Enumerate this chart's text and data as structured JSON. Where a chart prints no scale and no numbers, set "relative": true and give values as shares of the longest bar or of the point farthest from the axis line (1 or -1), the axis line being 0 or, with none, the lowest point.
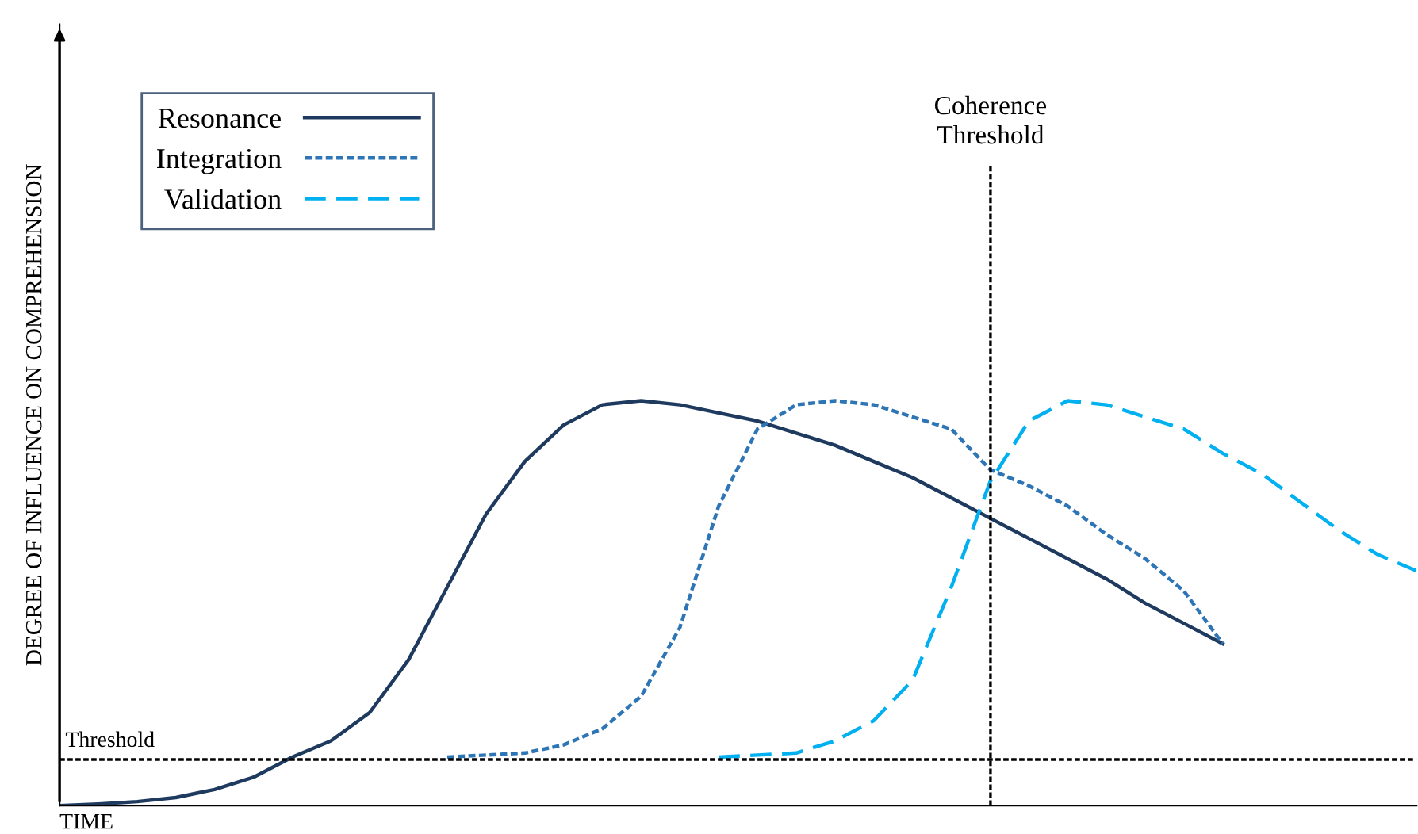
{
  "chart_data": {
    "type": "line",
    "relative": true,
    "xlabel": "TIME",
    "ylabel": "DEGREE OF INFLUENCE ON COMPREHENSION",
    "categories": [
      null,
      null,
      null,
      null,
      null,
      null,
      null,
      null,
      null,
      null,
      null,
      null,
      null,
      null,
      null,
      null,
      null,
      null,
      null,
      null,
      null,
      null,
      null,
      null,
      null,
      null,
      null,
      null,
      null,
      null,
      null,
      null,
      null,
      null,
      null,
      null
    ],
    "series": [
      {
        "name": "Resonance",
        "color": "#1f3a5f",
        "line_style": "solid",
        "values": [
          0,
          0.004,
          0.01,
          0.02,
          0.04,
          0.07,
          0.12,
          0.16,
          0.23,
          0.36,
          0.54,
          0.72,
          0.85,
          0.94,
          0.99,
          1.0,
          0.99,
          0.97,
          0.95,
          0.92,
          0.89,
          0.85,
          0.81,
          0.76,
          0.71,
          0.66,
          0.61,
          0.56,
          0.5,
          0.45,
          0.4,
          null,
          null,
          null,
          null,
          null
        ]
      },
      {
        "name": "Integration",
        "color": "#2e75b6",
        "line_style": "dotted",
        "values": [
          null,
          null,
          null,
          null,
          null,
          null,
          null,
          null,
          null,
          null,
          0.12,
          0.125,
          0.13,
          0.15,
          0.19,
          0.27,
          0.44,
          0.74,
          0.93,
          0.99,
          1.0,
          0.99,
          0.96,
          0.93,
          0.83,
          0.79,
          0.74,
          0.67,
          0.61,
          0.53,
          0.4,
          null,
          null,
          null,
          null,
          null
        ]
      },
      {
        "name": "Validation",
        "color": "#00b0f0",
        "line_style": "dashed",
        "values": [
          null,
          null,
          null,
          null,
          null,
          null,
          null,
          null,
          null,
          null,
          null,
          null,
          null,
          null,
          null,
          null,
          null,
          0.12,
          0.125,
          0.13,
          0.16,
          0.21,
          0.31,
          0.54,
          0.8,
          0.95,
          1.0,
          0.99,
          0.96,
          0.93,
          0.87,
          0.82,
          0.75,
          0.68,
          0.62,
          0.58
        ]
      }
    ],
    "ref_lines": [
      {
        "axis": "y",
        "value": 0.114,
        "label": "Threshold",
        "color": "#000000",
        "line_style": "dotted"
      }
    ],
    "annotations": [
      "Coherence\nThreshold"
    ],
    "legend": "top left"
  }
}
